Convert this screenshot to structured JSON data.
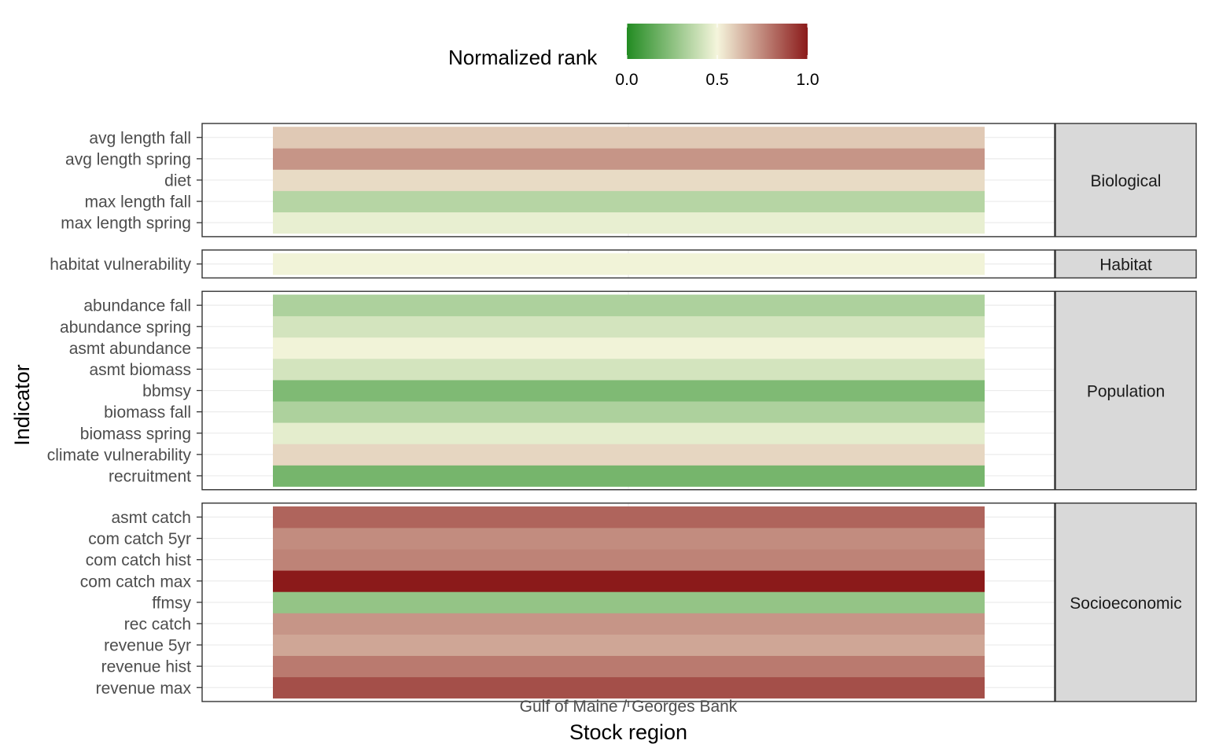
{
  "chart_data": {
    "type": "heatmap",
    "xlabel": "Stock region",
    "ylabel": "Indicator",
    "x_categories": [
      "Gulf of Maine / Georges Bank"
    ],
    "legend": {
      "title": "Normalized rank",
      "position": "top",
      "ticks": [
        "0.0",
        "0.5",
        "1.0"
      ],
      "range": [
        0,
        1
      ],
      "colors": {
        "low": "#228b22",
        "mid": "#f5f5dc",
        "high": "#8b1a1a"
      }
    },
    "facets": [
      {
        "label": "Biological",
        "rows": [
          {
            "indicator": "max length spring",
            "value": 0.47
          },
          {
            "indicator": "max length fall",
            "value": 0.35
          },
          {
            "indicator": "diet",
            "value": 0.56
          },
          {
            "indicator": "avg length spring",
            "value": 0.72
          },
          {
            "indicator": "avg length fall",
            "value": 0.6
          }
        ]
      },
      {
        "label": "Habitat",
        "rows": [
          {
            "indicator": "habitat vulnerability",
            "value": 0.49
          }
        ]
      },
      {
        "label": "Population",
        "rows": [
          {
            "indicator": "recruitment",
            "value": 0.2
          },
          {
            "indicator": "climate vulnerability",
            "value": 0.57
          },
          {
            "indicator": "biomass spring",
            "value": 0.46
          },
          {
            "indicator": "biomass fall",
            "value": 0.33
          },
          {
            "indicator": "bbmsy",
            "value": 0.22
          },
          {
            "indicator": "asmt biomass",
            "value": 0.42
          },
          {
            "indicator": "asmt abundance",
            "value": 0.49
          },
          {
            "indicator": "abundance spring",
            "value": 0.42
          },
          {
            "indicator": "abundance fall",
            "value": 0.33
          }
        ]
      },
      {
        "label": "Socioeconomic",
        "rows": [
          {
            "indicator": "revenue max",
            "value": 0.88
          },
          {
            "indicator": "revenue hist",
            "value": 0.78
          },
          {
            "indicator": "revenue 5yr",
            "value": 0.68
          },
          {
            "indicator": "rec catch",
            "value": 0.72
          },
          {
            "indicator": "ffmsy",
            "value": 0.27
          },
          {
            "indicator": "com catch max",
            "value": 1.0
          },
          {
            "indicator": "com catch hist",
            "value": 0.76
          },
          {
            "indicator": "com catch 5yr",
            "value": 0.74
          },
          {
            "indicator": "asmt catch",
            "value": 0.83
          }
        ]
      }
    ]
  }
}
